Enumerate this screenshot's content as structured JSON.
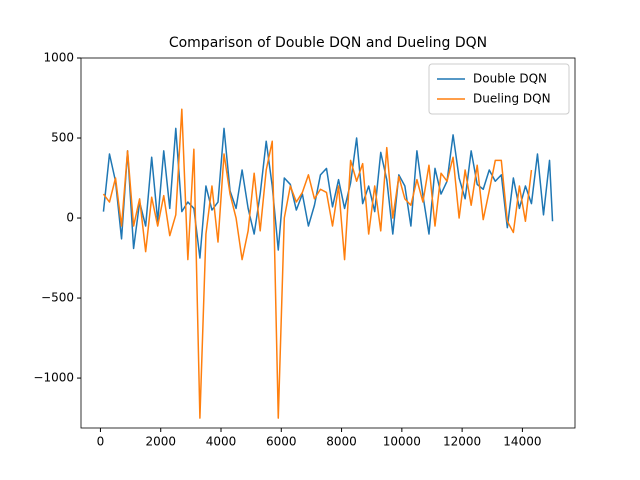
{
  "chart_data": {
    "type": "line",
    "title": "Comparison of Double DQN and Dueling DQN",
    "x": [
      100,
      300,
      500,
      700,
      900,
      1100,
      1300,
      1500,
      1700,
      1900,
      2100,
      2300,
      2500,
      2700,
      2900,
      3100,
      3300,
      3500,
      3700,
      3900,
      4100,
      4300,
      4500,
      4700,
      4900,
      5100,
      5300,
      5500,
      5700,
      5900,
      6100,
      6300,
      6500,
      6700,
      6900,
      7100,
      7300,
      7500,
      7700,
      7900,
      8100,
      8300,
      8500,
      8700,
      8900,
      9100,
      9300,
      9500,
      9700,
      9900,
      10100,
      10300,
      10500,
      10700,
      10900,
      11100,
      11300,
      11500,
      11700,
      11900,
      12100,
      12300,
      12500,
      12700,
      12900,
      13100,
      13300,
      13500,
      13700,
      13900,
      14100,
      14300,
      14500,
      14700,
      14900,
      15000
    ],
    "series": [
      {
        "name": "Double DQN",
        "color": "#1f77b4",
        "values": [
          40,
          400,
          230,
          -130,
          420,
          -190,
          100,
          -50,
          380,
          -20,
          420,
          60,
          560,
          40,
          100,
          60,
          -250,
          200,
          50,
          100,
          560,
          170,
          60,
          300,
          60,
          -100,
          150,
          480,
          200,
          -200,
          250,
          210,
          50,
          150,
          -50,
          80,
          270,
          310,
          70,
          240,
          60,
          220,
          500,
          90,
          200,
          40,
          410,
          240,
          -100,
          270,
          200,
          -50,
          420,
          140,
          -100,
          310,
          150,
          230,
          520,
          250,
          120,
          420,
          210,
          180,
          300,
          230,
          270,
          -60,
          250,
          60,
          200,
          90,
          400,
          20,
          360,
          -20
        ]
      },
      {
        "name": "Dueling DQN",
        "color": "#ff7f0e",
        "values": [
          150,
          100,
          250,
          -50,
          420,
          -50,
          120,
          -210,
          130,
          -50,
          140,
          -110,
          20,
          680,
          -260,
          430,
          -1250,
          -100,
          200,
          -150,
          400,
          150,
          0,
          -260,
          -80,
          280,
          -80,
          300,
          480,
          -1250,
          0,
          200,
          100,
          160,
          270,
          120,
          180,
          160,
          -50,
          200,
          -260,
          360,
          230,
          340,
          -100,
          200,
          -80,
          440,
          0,
          260,
          120,
          80,
          240,
          100,
          330,
          -50,
          280,
          230,
          380,
          0,
          300,
          80,
          330,
          -10,
          170,
          360,
          360,
          -20,
          -90,
          200,
          -20,
          300,
          null,
          null,
          null,
          null
        ]
      }
    ],
    "xlim": [
      -645,
      15745
    ],
    "ylim": [
      -1312,
      1000
    ],
    "xticks": [
      0,
      2000,
      4000,
      6000,
      8000,
      10000,
      12000,
      14000
    ],
    "yticks": [
      {
        "value": -1000,
        "label": "−1000"
      },
      {
        "value": -500,
        "label": "−500"
      },
      0,
      500,
      1000
    ],
    "legend": "upper right"
  }
}
